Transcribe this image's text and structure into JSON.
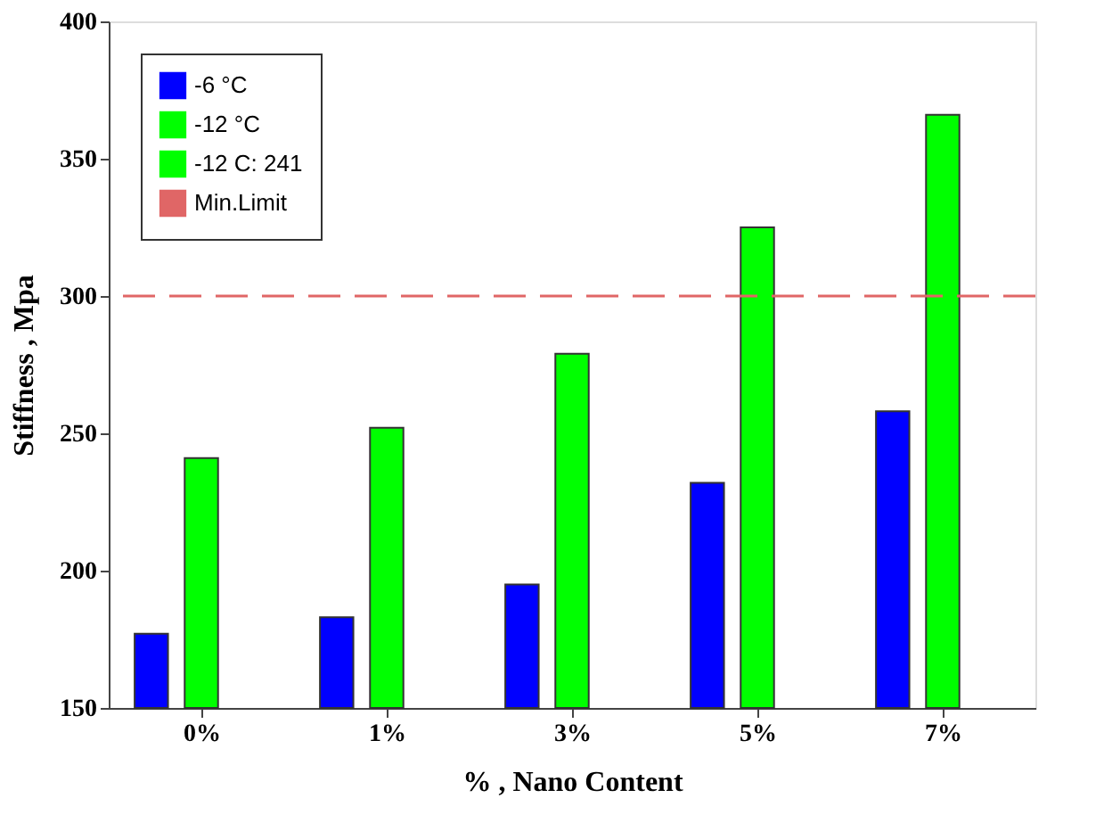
{
  "chart_data": {
    "type": "bar",
    "xlabel": "% , Nano Content",
    "ylabel": "Stiffness , Mpa",
    "categories": [
      "0%",
      "1%",
      "3%",
      "5%",
      "7%"
    ],
    "series": [
      {
        "name": "-6 °C",
        "color": "#0000ff",
        "values": [
          177,
          183,
          195,
          232,
          258
        ]
      },
      {
        "name": "-12 °C",
        "color": "#00ff00",
        "values": [
          241,
          252,
          279,
          325,
          366
        ]
      },
      {
        "name": "-12 C: 241",
        "color": "#00ff00",
        "values": [
          null,
          null,
          null,
          null,
          null
        ]
      }
    ],
    "ylim": [
      150,
      400
    ],
    "yticks": [
      150,
      200,
      250,
      300,
      350,
      400
    ],
    "grid": false,
    "legend": "top left",
    "ref_lines": [
      {
        "axis": "y",
        "value": 300,
        "label": "Min.Limit",
        "color": "#e06666",
        "line_style": "dashed"
      }
    ]
  }
}
